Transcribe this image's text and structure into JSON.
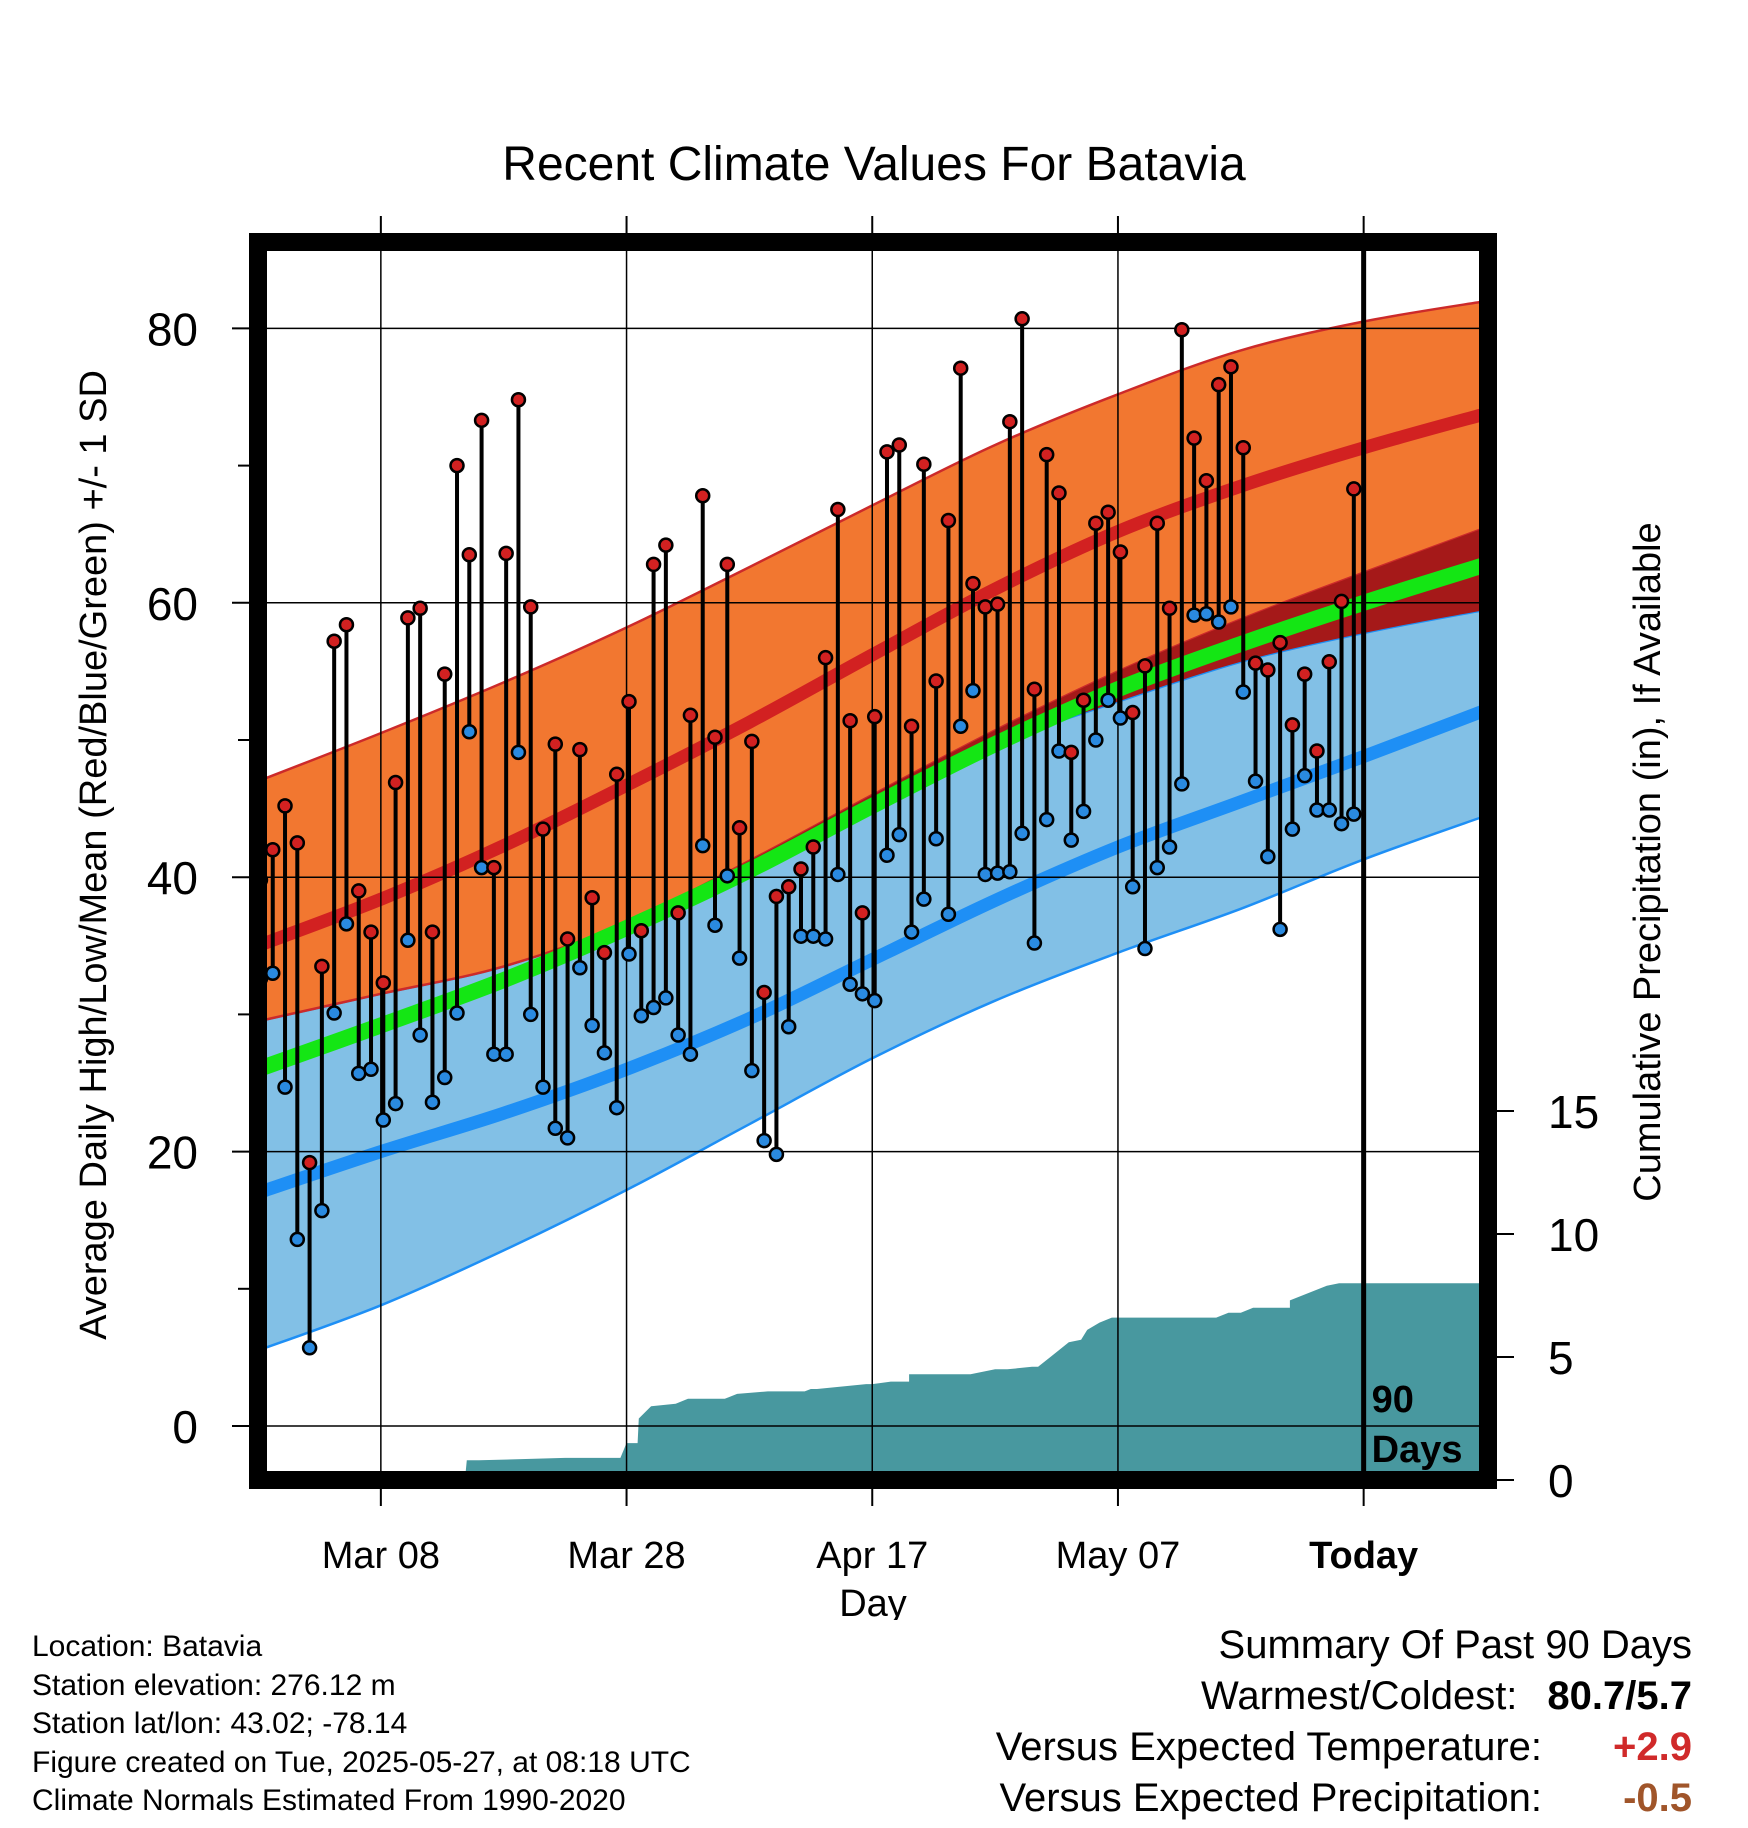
{
  "chart_data": {
    "type": "line",
    "title": "Recent Climate Values For Batavia",
    "xlabel": "Day",
    "ylabel": "Average Daily High/Low/Mean (Red/Blue/Green) +/- 1 SD",
    "y2label": "Cumulative Precipitation (in), If Available",
    "x_tick_labels": [
      "Mar 08",
      "Mar 28",
      "Apr 17",
      "May 07",
      "Today"
    ],
    "x_tick_days": [
      10,
      30,
      50,
      70,
      90
    ],
    "y_ticks": [
      0,
      20,
      40,
      60,
      80
    ],
    "y2_ticks": [
      0,
      5,
      10,
      15
    ],
    "ylim": [
      -3.6,
      86
    ],
    "y2lim": [
      0,
      15
    ],
    "xlim": [
      0,
      100
    ],
    "today_marker_label": [
      "90",
      "Days"
    ],
    "grid": true,
    "normals": {
      "days": [
        0,
        10,
        20,
        30,
        40,
        50,
        60,
        70,
        80,
        90,
        100
      ],
      "high_mean": [
        35,
        38.4,
        42.3,
        46.7,
        51.3,
        56.2,
        61,
        65.2,
        68.5,
        71.3,
        73.8
      ],
      "high_upper": [
        47,
        50.5,
        54.2,
        58.2,
        62.6,
        67.1,
        71.5,
        75.2,
        78.4,
        80.5,
        82
      ],
      "high_lower": [
        29.5,
        31.5,
        33.5,
        36.7,
        41.2,
        46,
        50.7,
        55,
        58.8,
        62.2,
        65.5
      ],
      "low_mean": [
        17,
        20,
        22.8,
        26,
        29.7,
        34,
        38.3,
        42.2,
        45.5,
        48.8,
        52.2
      ],
      "low_upper": [
        29.5,
        31.5,
        33.5,
        36.7,
        41,
        45.7,
        49.7,
        52.8,
        55.7,
        57.8,
        59.5
      ],
      "low_lower": [
        5.5,
        8.8,
        12.8,
        17.2,
        22,
        26.8,
        31,
        34.5,
        37.7,
        41.3,
        44.5
      ],
      "mean": [
        26,
        29.2,
        32.5,
        36.3,
        40.5,
        45.2,
        49.7,
        53.7,
        57,
        60,
        62.8
      ]
    },
    "daily": {
      "start_day": 0,
      "high": [
        39.8,
        42,
        45.2,
        42.5,
        19.2,
        33.5,
        57.2,
        58.4,
        39,
        36,
        32.3,
        46.9,
        58.9,
        59.6,
        36,
        54.8,
        70,
        63.5,
        73.3,
        40.7,
        63.6,
        74.8,
        59.7,
        43.5,
        49.7,
        35.5,
        49.3,
        38.5,
        34.5,
        47.5,
        52.8,
        36.1,
        62.8,
        64.2,
        37.4,
        51.8,
        67.8,
        50.2,
        62.8,
        43.6,
        49.9,
        31.6,
        38.6,
        39.3,
        40.6,
        42.2,
        56,
        66.8,
        51.4,
        37.4,
        51.7,
        71,
        71.5,
        51,
        70.1,
        54.3,
        66,
        77.1,
        61.4,
        59.7,
        59.9,
        73.2,
        80.7,
        53.7,
        70.8,
        68,
        49.1,
        52.9,
        65.8,
        66.6,
        63.7,
        52,
        55.4,
        65.8,
        59.6,
        79.9,
        72,
        68.9,
        75.9,
        77.2,
        71.3,
        55.6,
        55.1,
        57.1,
        51.1,
        54.8,
        49.2,
        55.7,
        60.1,
        68.3
      ],
      "low": [
        32.6,
        33,
        24.7,
        13.6,
        5.7,
        15.7,
        30.1,
        36.6,
        25.7,
        26,
        22.3,
        23.5,
        35.4,
        28.5,
        23.6,
        25.4,
        30.1,
        50.6,
        40.7,
        27.1,
        27.1,
        49.1,
        30,
        24.7,
        21.7,
        21,
        33.4,
        29.2,
        27.2,
        23.2,
        34.4,
        29.9,
        30.5,
        31.2,
        28.5,
        27.1,
        42.3,
        36.5,
        40.1,
        34.1,
        25.9,
        20.8,
        19.8,
        29.1,
        35.7,
        35.7,
        35.5,
        40.2,
        32.2,
        31.5,
        31,
        41.6,
        43.1,
        36,
        38.4,
        42.8,
        37.3,
        51,
        53.6,
        40.2,
        40.3,
        40.4,
        43.2,
        35.2,
        44.2,
        49.2,
        42.7,
        44.8,
        50,
        52.9,
        51.6,
        39.3,
        34.8,
        40.7,
        42.2,
        46.8,
        59.1,
        59.2,
        58.6,
        59.7,
        53.5,
        47,
        41.5,
        36.2,
        43.5,
        47.4,
        44.9,
        44.9,
        43.9,
        44.6
      ]
    },
    "precip": {
      "days": [
        0,
        6.9,
        7,
        16.9,
        17,
        18,
        25,
        29.5,
        30,
        30.9,
        31,
        32,
        34,
        35,
        38,
        39,
        41.5,
        42,
        44.5,
        45,
        45.5,
        49.5,
        50,
        51.5,
        51.5,
        53,
        53,
        54.5,
        58,
        58,
        60,
        61,
        63,
        63.5,
        64.5,
        65,
        66,
        67,
        67.5,
        68.5,
        69.5,
        70,
        75,
        76,
        77,
        78,
        79,
        80,
        81,
        84,
        84,
        85,
        86,
        87,
        88,
        100
      ],
      "cumulative": [
        0,
        0,
        0.3,
        0.3,
        0.8,
        0.8,
        0.9,
        0.9,
        1.5,
        1.5,
        2.5,
        3,
        3.1,
        3.3,
        3.3,
        3.5,
        3.6,
        3.6,
        3.6,
        3.7,
        3.7,
        3.9,
        3.9,
        4,
        4,
        4,
        4.3,
        4.3,
        4.3,
        4.3,
        4.5,
        4.5,
        4.6,
        4.6,
        5,
        5.2,
        5.6,
        5.7,
        6.1,
        6.4,
        6.6,
        6.6,
        6.6,
        6.6,
        6.6,
        6.6,
        6.8,
        6.8,
        7,
        7,
        7.3,
        7.5,
        7.7,
        7.9,
        8,
        8
      ]
    },
    "colors": {
      "high_band": "#f27730",
      "high_mean": "#d22121",
      "low_band": "#82c0e6",
      "low_mean": "#1e8ff5",
      "mean": "#14e614",
      "overlap": "#a51919",
      "precip": "#48989f",
      "high_marker": "#d22121",
      "low_marker": "#2a8ae0"
    }
  },
  "footer": {
    "location": "Location: Batavia",
    "elevation": "Station elevation: 276.12 m",
    "latlon": "Station lat/lon: 43.02; -78.14",
    "created": "Figure created on Tue, 2025-05-27, at 08:18 UTC",
    "normals": "Climate Normals Estimated From 1990-2020"
  },
  "summary": {
    "title": "Summary Of Past 90 Days",
    "warmest_coldest_label": "Warmest/Coldest:",
    "warmest_coldest_value": "80.7/5.7",
    "temp_label": "Versus Expected Temperature:",
    "temp_value": "+2.9",
    "temp_color": "#d02a2a",
    "precip_label": "Versus Expected Precipitation:",
    "precip_value": "-0.5",
    "precip_color": "#a0552a"
  }
}
